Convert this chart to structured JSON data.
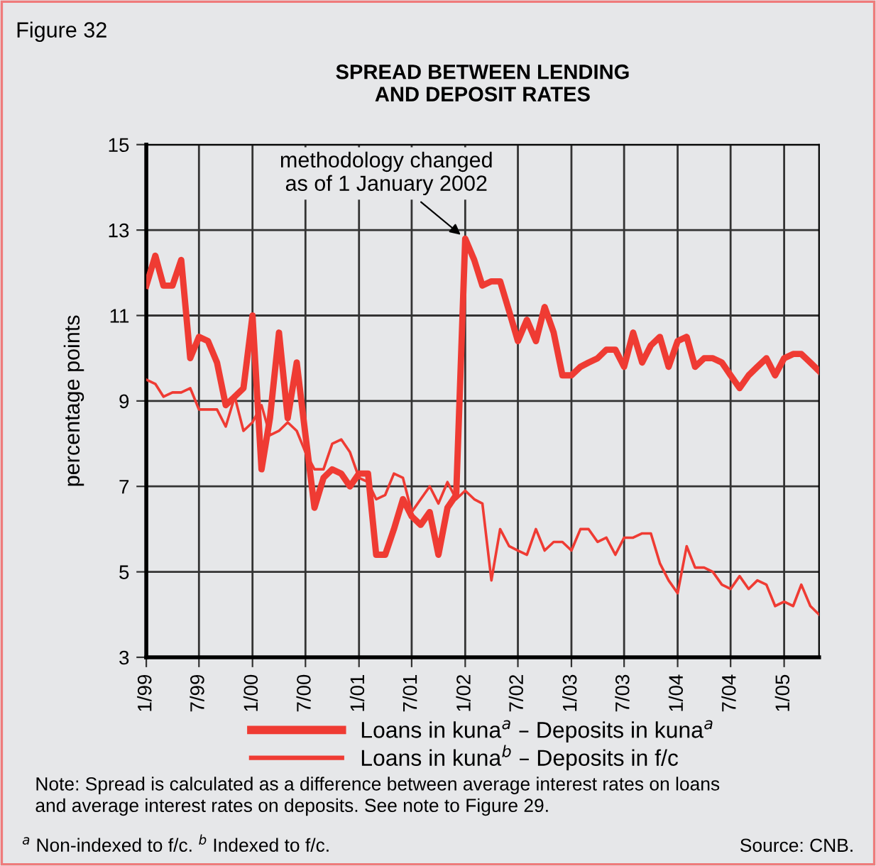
{
  "chart_data": {
    "type": "line",
    "title": "SPREAD BETWEEN LENDING\nAND DEPOSIT RATES",
    "ylabel": "percentage points",
    "annotations": [
      "Figure 32",
      {
        "text": "methodology changed\nas of 1 January 2002",
        "x": "2002-01",
        "y": 12.8
      },
      "Note: Spread is calculated as a difference between average interest rates on loans\nand average interest rates on deposits. See note to Figure 29.",
      "$^{a}$ Non-indexed to f/c. $^{b}$ Indexed to f/c.",
      "Source: CNB."
    ],
    "x": [
      "1999-01",
      "1999-02",
      "1999-03",
      "1999-04",
      "1999-05",
      "1999-06",
      "1999-07",
      "1999-08",
      "1999-09",
      "1999-10",
      "1999-11",
      "1999-12",
      "2000-01",
      "2000-02",
      "2000-03",
      "2000-04",
      "2000-05",
      "2000-06",
      "2000-07",
      "2000-08",
      "2000-09",
      "2000-10",
      "2000-11",
      "2000-12",
      "2001-01",
      "2001-02",
      "2001-03",
      "2001-04",
      "2001-05",
      "2001-06",
      "2001-07",
      "2001-08",
      "2001-09",
      "2001-10",
      "2001-11",
      "2001-12",
      "2002-01",
      "2002-02",
      "2002-03",
      "2002-04",
      "2002-05",
      "2002-06",
      "2002-07",
      "2002-08",
      "2002-09",
      "2002-10",
      "2002-11",
      "2002-12",
      "2003-01",
      "2003-02",
      "2003-03",
      "2003-04",
      "2003-05",
      "2003-06",
      "2003-07",
      "2003-08",
      "2003-09",
      "2003-10",
      "2003-11",
      "2003-12",
      "2004-01",
      "2004-02",
      "2004-03",
      "2004-04",
      "2004-05",
      "2004-06",
      "2004-07",
      "2004-08",
      "2004-09",
      "2004-10",
      "2004-11",
      "2004-12",
      "2005-01",
      "2005-02",
      "2005-03",
      "2005-04",
      "2005-05"
    ],
    "series": [
      {
        "name": "Loans in kuna$^{a}$ – Deposits in kuna$^{a}$",
        "color": "#ef3b33",
        "values": [
          11.7,
          12.4,
          11.7,
          11.7,
          12.3,
          10.0,
          10.5,
          10.4,
          9.9,
          8.9,
          9.1,
          9.3,
          11.0,
          7.4,
          8.6,
          10.6,
          8.6,
          9.9,
          8.2,
          6.5,
          7.2,
          7.4,
          7.3,
          7.0,
          7.3,
          7.3,
          5.4,
          5.4,
          6.0,
          6.7,
          6.3,
          6.1,
          6.4,
          5.4,
          6.5,
          6.8,
          12.8,
          12.3,
          11.7,
          11.8,
          11.8,
          11.1,
          10.4,
          10.9,
          10.4,
          11.2,
          10.6,
          9.6,
          9.6,
          9.8,
          9.9,
          10.0,
          10.2,
          10.2,
          9.8,
          10.6,
          9.9,
          10.3,
          10.5,
          9.8,
          10.4,
          10.5,
          9.8,
          10.0,
          10.0,
          9.9,
          9.6,
          9.3,
          9.6,
          9.8,
          10.0,
          9.6,
          10.0,
          10.1,
          10.1,
          9.9,
          9.7
        ]
      },
      {
        "name": "Loans in kuna$^{b}$ – Deposits in f/c",
        "color": "#ef3b33",
        "values": [
          9.5,
          9.4,
          9.1,
          9.2,
          9.2,
          9.3,
          8.8,
          8.8,
          8.8,
          8.4,
          9.1,
          8.3,
          8.5,
          8.9,
          8.2,
          8.3,
          8.5,
          8.3,
          7.8,
          7.4,
          7.4,
          8.0,
          8.1,
          7.8,
          7.2,
          7.1,
          6.7,
          6.8,
          7.3,
          7.2,
          6.4,
          6.7,
          7.0,
          6.6,
          7.1,
          6.7,
          6.9,
          6.7,
          6.6,
          4.8,
          6.0,
          5.6,
          5.5,
          5.4,
          6.0,
          5.5,
          5.7,
          5.7,
          5.5,
          6.0,
          6.0,
          5.7,
          5.8,
          5.4,
          5.8,
          5.8,
          5.9,
          5.9,
          5.2,
          4.8,
          4.5,
          5.6,
          5.1,
          5.1,
          5.0,
          4.7,
          4.6,
          4.9,
          4.6,
          4.8,
          4.7,
          4.2,
          4.3,
          4.2,
          4.7,
          4.2,
          4.0
        ]
      }
    ],
    "xlim": [
      "1999-01",
      "2005-05"
    ],
    "xticks": [
      {
        "value": "1999-01",
        "label": "1/99"
      },
      {
        "value": "1999-07",
        "label": "7/99"
      },
      {
        "value": "2000-01",
        "label": "1/00"
      },
      {
        "value": "2000-07",
        "label": "7/00"
      },
      {
        "value": "2001-01",
        "label": "1/01"
      },
      {
        "value": "2001-07",
        "label": "7/01"
      },
      {
        "value": "2002-01",
        "label": "1/02"
      },
      {
        "value": "2002-07",
        "label": "7/02"
      },
      {
        "value": "2003-01",
        "label": "1/03"
      },
      {
        "value": "2003-07",
        "label": "7/03"
      },
      {
        "value": "2004-01",
        "label": "1/04"
      },
      {
        "value": "2004-07",
        "label": "7/04"
      },
      {
        "value": "2005-01",
        "label": "1/05"
      }
    ],
    "ylim": [
      3,
      15
    ],
    "yticks": [
      3,
      5,
      7,
      9,
      11,
      13,
      15
    ],
    "grid": true,
    "legend": "bottom",
    "line_style": "solid",
    "marker": "none"
  }
}
